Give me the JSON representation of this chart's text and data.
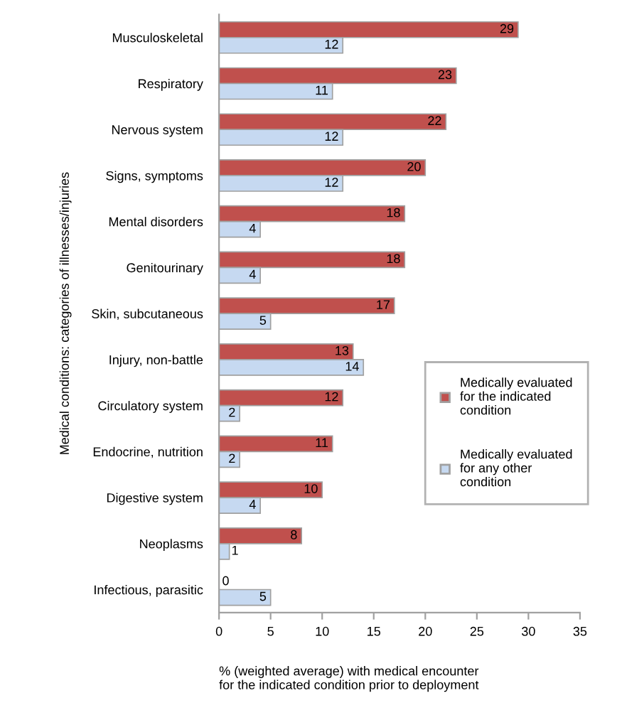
{
  "chart_data": {
    "type": "bar",
    "orientation": "horizontal",
    "ylabel": "Medical conditions: categories of illnesses/injuries",
    "xlabel": "% (weighted average) with medical encounter\nfor the indicated condition prior to deployment",
    "categories": [
      "Musculoskeletal",
      "Respiratory",
      "Nervous system",
      "Signs, symptoms",
      "Mental disorders",
      "Genitourinary",
      "Skin, subcutaneous",
      "Injury, non-battle",
      "Circulatory system",
      "Endocrine, nutrition",
      "Digestive system",
      "Neoplasms",
      "Infectious, parasitic"
    ],
    "series": [
      {
        "name": "Medically evaluated\nfor the indicated\ncondition",
        "color": "#c0504d",
        "values": [
          29,
          23,
          22,
          20,
          18,
          18,
          17,
          13,
          12,
          11,
          10,
          8,
          0
        ]
      },
      {
        "name": "Medically evaluated\nfor any other\ncondition",
        "color": "#c6d9f1",
        "values": [
          12,
          11,
          12,
          12,
          4,
          4,
          5,
          14,
          2,
          2,
          4,
          1,
          5
        ]
      }
    ],
    "xlim": [
      0,
      35
    ],
    "xticks": [
      0,
      5,
      10,
      15,
      20,
      25,
      30,
      35
    ],
    "data_labels": true,
    "grid": false,
    "legend": "right"
  }
}
